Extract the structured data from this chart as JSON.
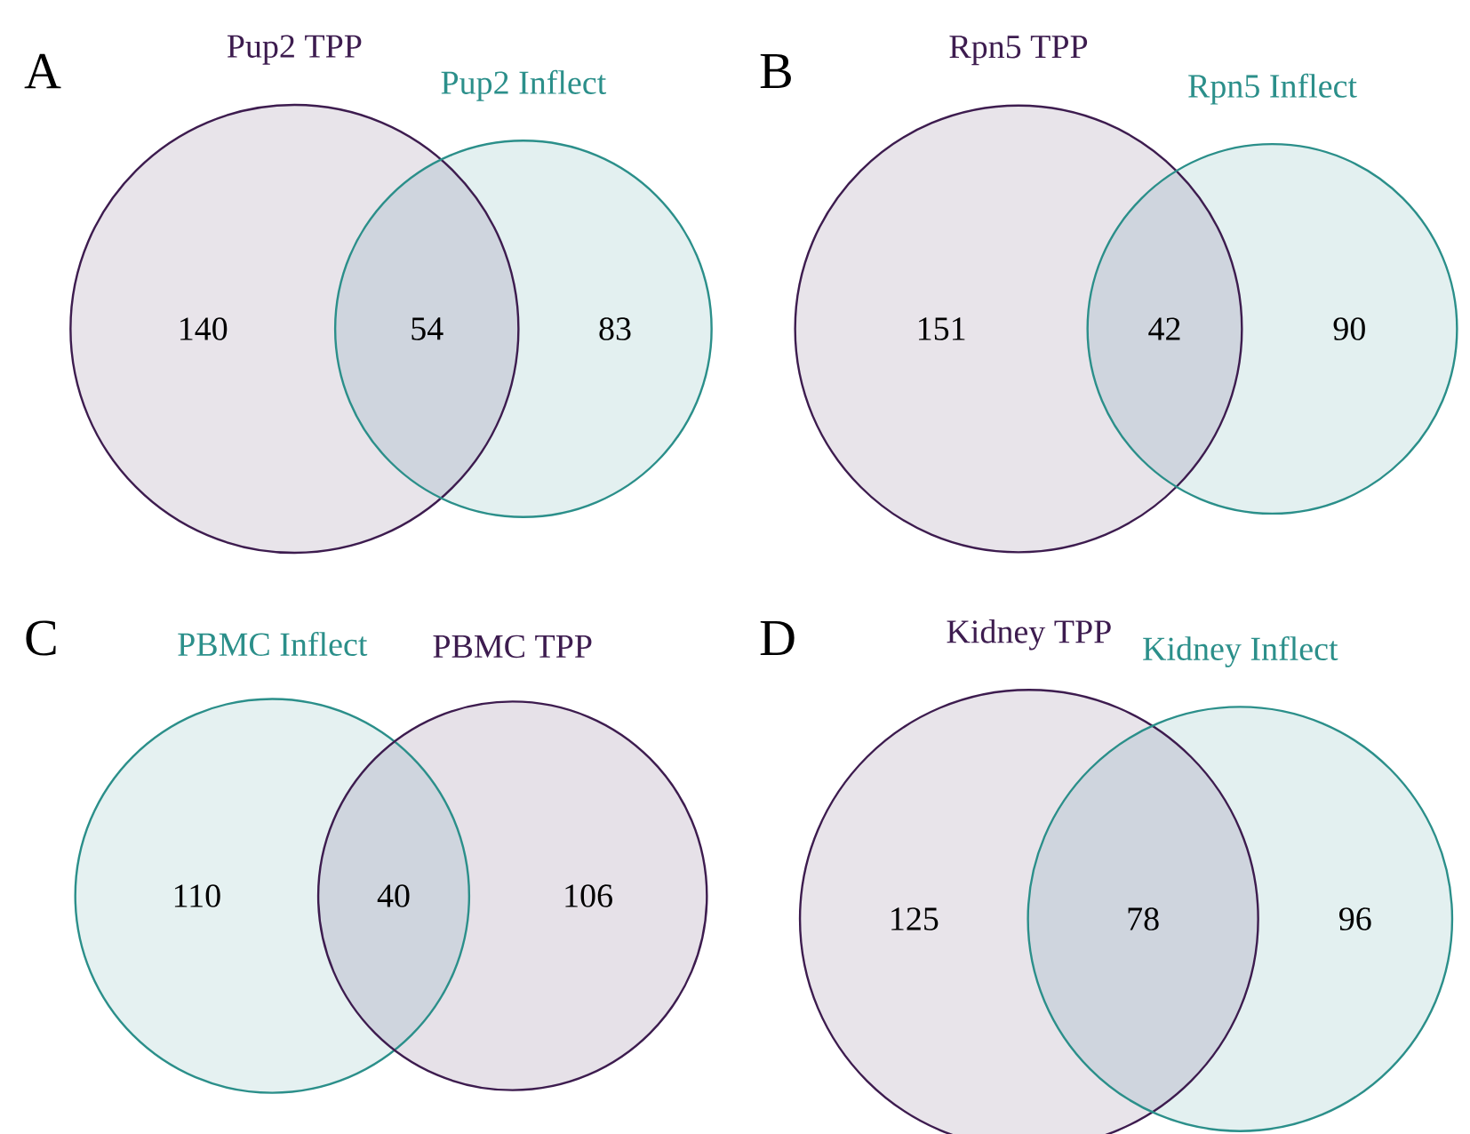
{
  "chart_data": [
    {
      "type": "other",
      "title": "A",
      "categories": [
        null,
        null,
        null
      ],
      "values": [
        140,
        54,
        83
      ],
      "colors": [
        "#3d1c4f",
        "#cfd5de",
        "#2b8f8a"
      ],
      "data_labels": true,
      "annotations": [
        "Pup2 TPP",
        "Pup2 Inflect"
      ]
    },
    {
      "type": "other",
      "title": "B",
      "categories": [
        null,
        null,
        null
      ],
      "values": [
        151,
        42,
        90
      ],
      "colors": [
        "#3d1c4f",
        "#cfd5de",
        "#2b8f8a"
      ],
      "data_labels": true,
      "annotations": [
        "Rpn5 TPP",
        "Rpn5 Inflect"
      ]
    },
    {
      "type": "other",
      "title": "C",
      "categories": [
        null,
        null,
        null
      ],
      "values": [
        110,
        40,
        106
      ],
      "colors": [
        "#2b8f8a",
        "#cfd5de",
        "#3d1c4f"
      ],
      "data_labels": true,
      "annotations": [
        "PBMC Inflect",
        "PBMC TPP"
      ]
    },
    {
      "type": "other",
      "title": "D",
      "categories": [
        null,
        null,
        null
      ],
      "values": [
        125,
        78,
        96
      ],
      "colors": [
        "#3d1c4f",
        "#cfd5de",
        "#2b8f8a"
      ],
      "data_labels": true,
      "annotations": [
        "Kidney TPP",
        "Kidney Inflect"
      ]
    }
  ]
}
